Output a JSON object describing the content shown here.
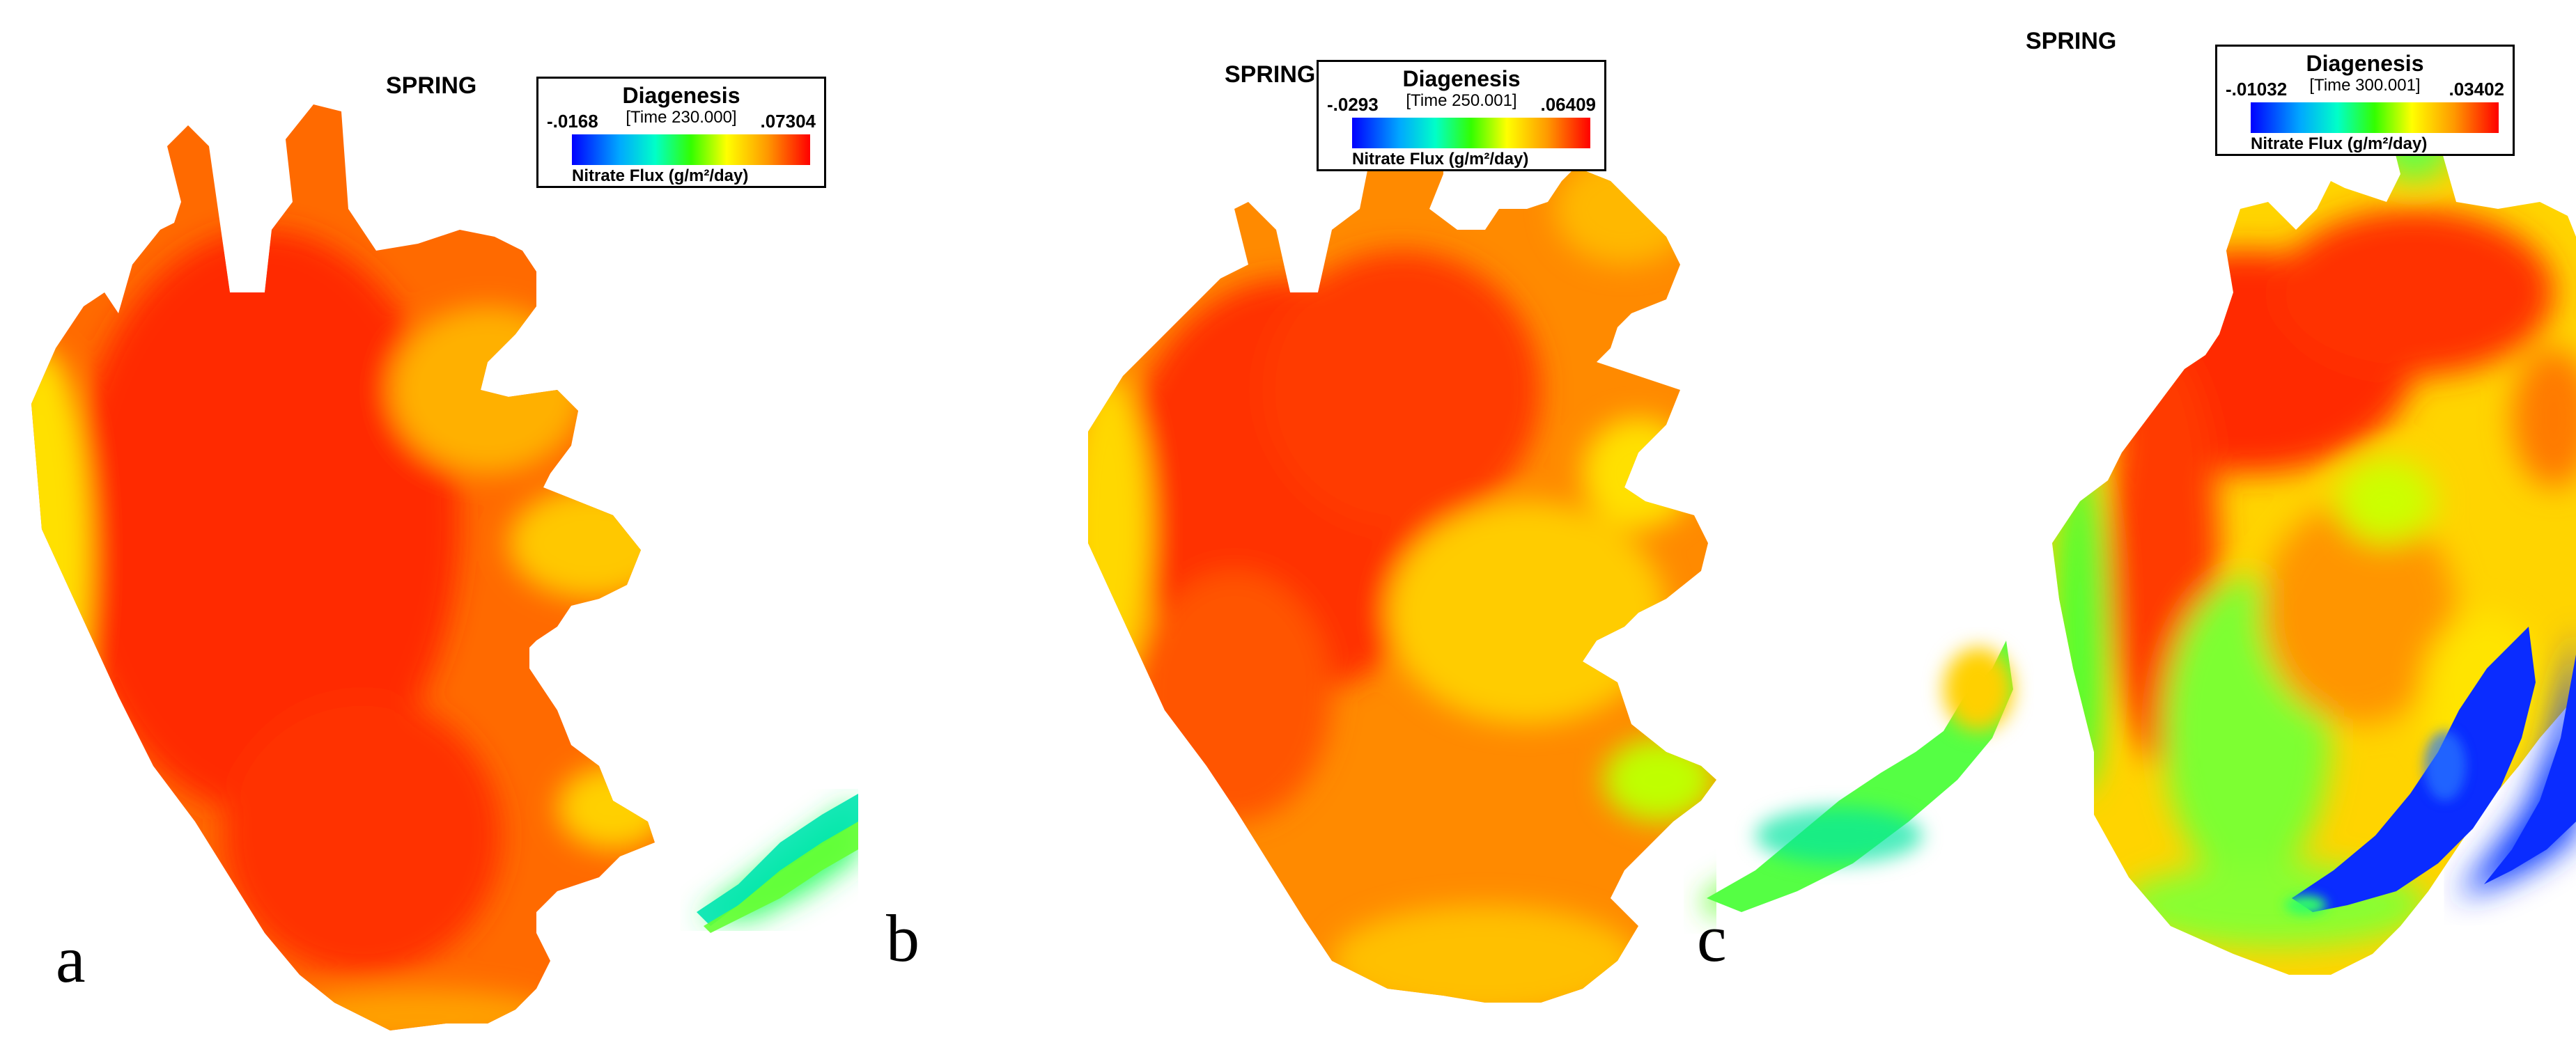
{
  "panels": [
    {
      "id": "a",
      "label": "a",
      "season": "SPRING",
      "legend": {
        "title": "Diagenesis",
        "time": "[Time 230.000]",
        "min": "-.0168",
        "max": ".07304",
        "units": "Nitrate Flux (g/m²/day)"
      }
    },
    {
      "id": "b",
      "label": "b",
      "season": "SPRING",
      "legend": {
        "title": "Diagenesis",
        "time": "[Time 250.001]",
        "min": "-.0293",
        "max": ".06409",
        "units": "Nitrate Flux (g/m²/day)"
      }
    },
    {
      "id": "c",
      "label": "c",
      "season": "SPRING",
      "legend": {
        "title": "Diagenesis",
        "time": "[Time 300.001]",
        "min": "-.01032",
        "max": ".03402",
        "units": "Nitrate Flux (g/m²/day)"
      }
    }
  ],
  "colors": {
    "high": "#ff2a00",
    "mid_high": "#ff7700",
    "mid": "#ffd000",
    "mid_low": "#7dff00",
    "low": "#00e6a0",
    "min": "#0033ff"
  }
}
